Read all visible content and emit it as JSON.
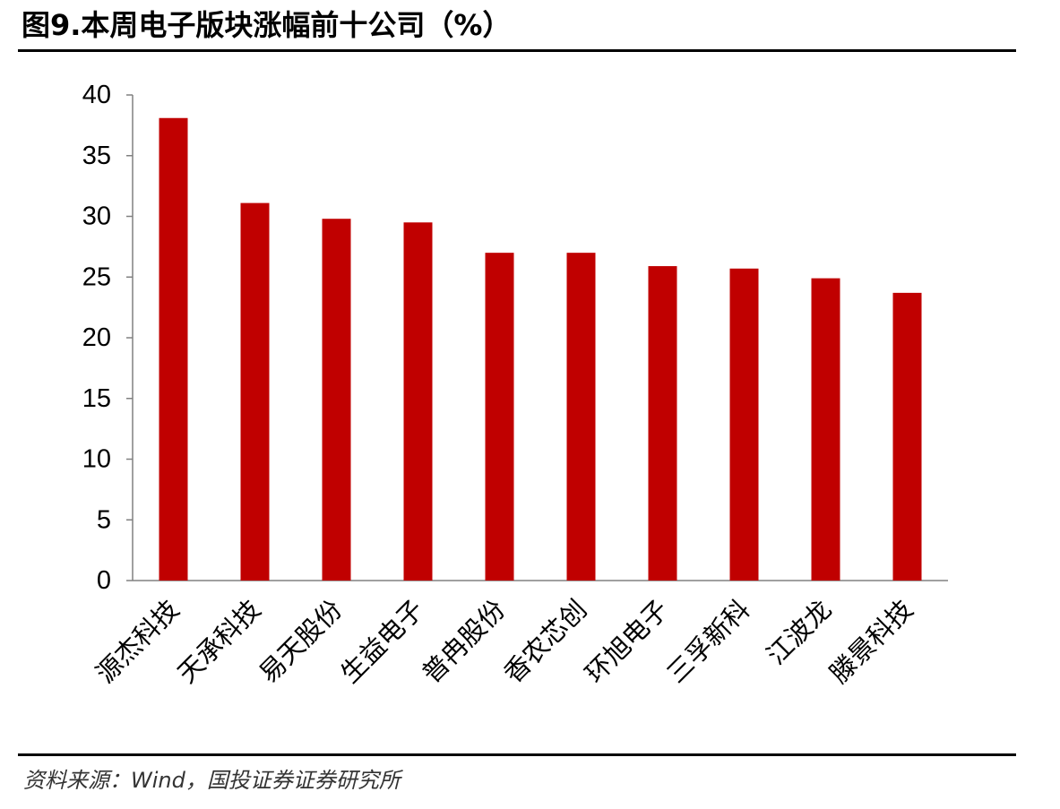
{
  "figure": {
    "title": "图9.本周电子版块涨幅前十公司（%）",
    "source": "资料来源：Wind，国投证券证券研究所"
  },
  "colors": {
    "bar": "#C00000",
    "axis": "#808080",
    "text": "#000000"
  },
  "chart_data": {
    "type": "bar",
    "title": "图9.本周电子版块涨幅前十公司（%）",
    "xlabel": "",
    "ylabel": "",
    "categories": [
      "源杰科技",
      "天承科技",
      "易天股份",
      "生益电子",
      "普冉股份",
      "香农芯创",
      "环旭电子",
      "三孚新科",
      "江波龙",
      "滕景科技"
    ],
    "values": [
      38.1,
      31.1,
      29.8,
      29.5,
      27.0,
      27.0,
      25.9,
      25.7,
      24.9,
      23.7
    ],
    "ylim": [
      0,
      40
    ],
    "yticks": [
      0,
      5,
      10,
      15,
      20,
      25,
      30,
      35,
      40
    ],
    "grid": false,
    "legend": "none"
  }
}
